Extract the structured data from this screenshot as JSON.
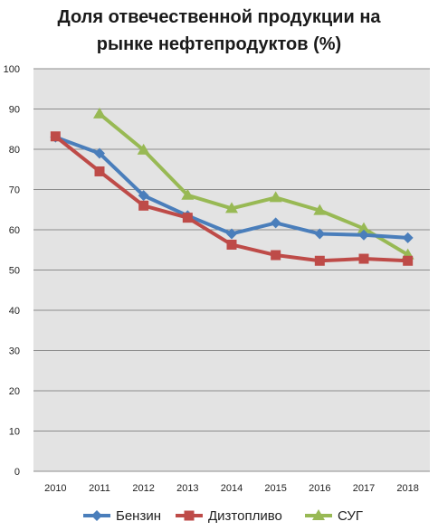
{
  "chart_data": {
    "type": "line",
    "title_line1": "Доля отвечественной продукции на",
    "title_line2": "рынке нефтепродуктов (%)",
    "xlabel": "",
    "ylabel": "",
    "x": [
      "2010",
      "2011",
      "2012",
      "2013",
      "2014",
      "2015",
      "2016",
      "2017",
      "2018"
    ],
    "ylim": [
      0,
      100
    ],
    "yticks": [
      "0",
      "10",
      "20",
      "30",
      "40",
      "50",
      "60",
      "70",
      "80",
      "90",
      "100"
    ],
    "grid": true,
    "legend": "bottom",
    "series": [
      {
        "name": "Бензин",
        "color": "#4a7ebb",
        "marker": "diamond",
        "values": [
          83,
          79,
          68.5,
          63.5,
          59,
          61.7,
          59,
          58.7,
          58
        ]
      },
      {
        "name": "Дизтопливо",
        "color": "#be4b48",
        "marker": "square",
        "values": [
          83.2,
          74.5,
          66,
          63,
          56.3,
          53.7,
          52.3,
          52.8,
          52.3
        ]
      },
      {
        "name": "СУГ",
        "color": "#98b954",
        "marker": "triangle",
        "values": [
          null,
          88.8,
          79.8,
          68.6,
          65.3,
          68,
          64.8,
          60.3,
          53.8
        ]
      }
    ]
  }
}
